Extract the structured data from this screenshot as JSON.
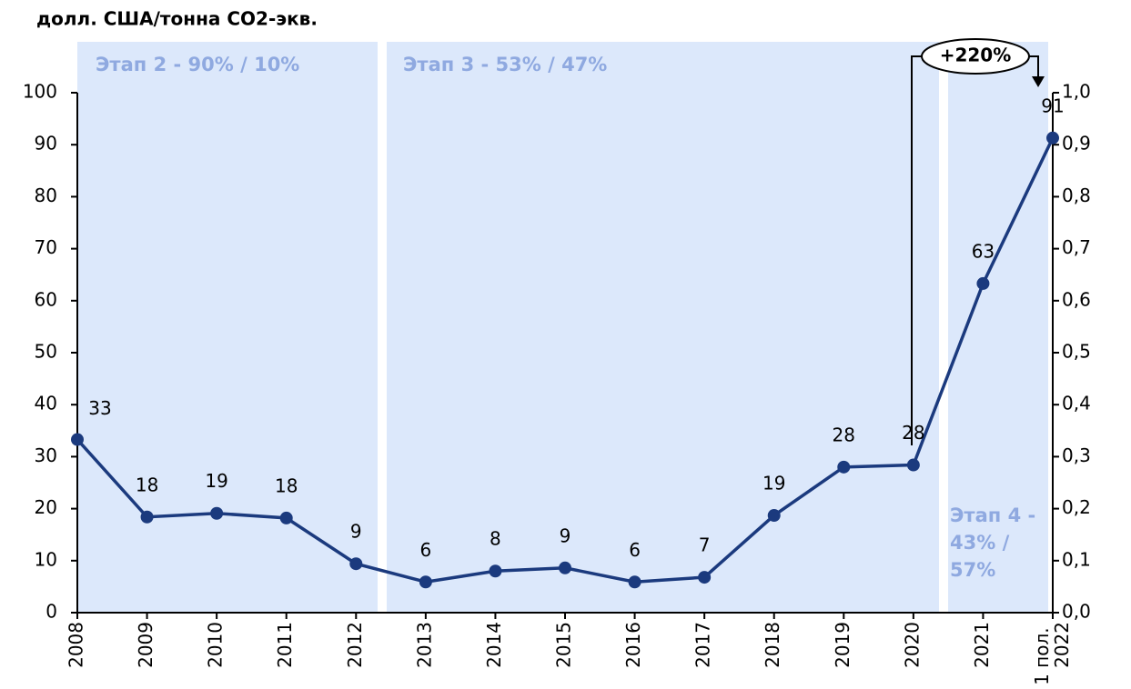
{
  "chart_data": {
    "type": "line",
    "title": "долл. США/тонна CO2-экв.",
    "categories": [
      "2008",
      "2009",
      "2010",
      "2011",
      "2012",
      "2013",
      "2014",
      "2015",
      "2016",
      "2017",
      "2018",
      "2019",
      "2020",
      "2021",
      "1 пол. 2022"
    ],
    "series": [
      {
        "color": "#1b3a7e",
        "values": [
          33.3,
          18.4,
          19.1,
          18.2,
          9.4,
          5.9,
          8.0,
          8.6,
          5.9,
          6.8,
          18.7,
          28.0,
          28.4,
          63.3,
          91.3
        ],
        "value_labels": [
          "33",
          "18",
          "19",
          "18",
          "9",
          "6",
          "8",
          "9",
          "6",
          "7",
          "19",
          "28",
          "28",
          "63",
          "91"
        ]
      }
    ],
    "ylim": [
      0,
      100
    ],
    "yticks": [
      0,
      10,
      20,
      30,
      40,
      50,
      60,
      70,
      80,
      90,
      100
    ],
    "y2lim": [
      0,
      1
    ],
    "y2ticks": [
      {
        "value": 0,
        "label": "0,0"
      },
      {
        "value": 0.1,
        "label": "0,1"
      },
      {
        "value": 0.2,
        "label": "0,2"
      },
      {
        "value": 0.3,
        "label": "0,3"
      },
      {
        "value": 0.4,
        "label": "0,4"
      },
      {
        "value": 0.5,
        "label": "0,5"
      },
      {
        "value": 0.6,
        "label": "0,6"
      },
      {
        "value": 0.7,
        "label": "0,7"
      },
      {
        "value": 0.8,
        "label": "0,8"
      },
      {
        "value": 0.9,
        "label": "0,9"
      },
      {
        "value": 1,
        "label": "1,0"
      }
    ],
    "phases": [
      "Этап 2 - 90% / 10%",
      "Этап 3 - 53% / 47%",
      "Этап 4 - 43% / 57%"
    ],
    "annotation": "+220%"
  }
}
